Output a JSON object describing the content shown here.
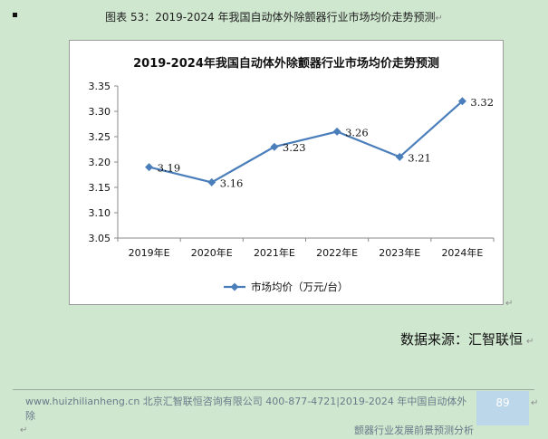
{
  "caption": {
    "text": "图表  53：2019-2024 年我国自动体外除颤器行业市场均价走势预测"
  },
  "chart_data": {
    "type": "line",
    "title": "2019-2024年我国自动体外除颤器行业市场均价走势预测",
    "categories": [
      "2019年E",
      "2020年E",
      "2021年E",
      "2022年E",
      "2023年E",
      "2024年E"
    ],
    "series": [
      {
        "name": "市场均价（万元/台）",
        "values": [
          3.19,
          3.16,
          3.23,
          3.26,
          3.21,
          3.32
        ],
        "labels": [
          "3.19",
          "3.16",
          "3.23",
          "3.26",
          "3.21",
          "3.32"
        ]
      }
    ],
    "y_ticks": [
      "3.35",
      "3.30",
      "3.25",
      "3.20",
      "3.15",
      "3.10",
      "3.05"
    ],
    "ylim": [
      3.05,
      3.35
    ],
    "grid": false,
    "legend_position": "bottom",
    "color": "#4a7ebb"
  },
  "source": {
    "text": "数据来源：汇智联恒"
  },
  "footer": {
    "line1": "www.huizhilianheng.cn 北京汇智联恒咨询有限公司  400-877-4721|2019-2024 年中国自动体外除",
    "line2": "颤器行业发展前景预测分析",
    "page_number": "89"
  }
}
